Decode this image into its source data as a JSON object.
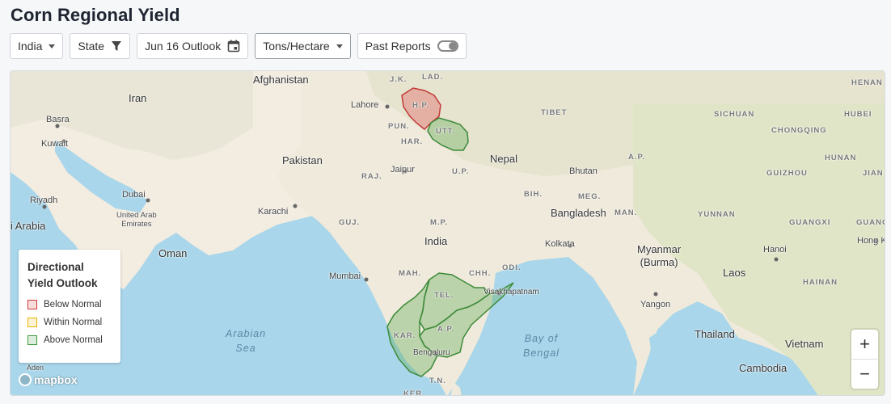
{
  "page": {
    "title": "Corn Regional Yield"
  },
  "toolbar": {
    "country": "India",
    "level": "State",
    "outlook": "Jun 16 Outlook",
    "unit": "Tons/Hectare",
    "past_reports": "Past Reports"
  },
  "legend": {
    "title_line1": "Directional",
    "title_line2": "Yield Outlook",
    "items": [
      {
        "label": "Below Normal",
        "color": "#d23b3b"
      },
      {
        "label": "Within Normal",
        "color": "#e8b400"
      },
      {
        "label": "Above Normal",
        "color": "#3d9a3a"
      }
    ]
  },
  "map": {
    "attribution": "mapbox",
    "zoom_in": "+",
    "zoom_out": "−",
    "region_outlook": [
      {
        "state": "H.P.",
        "outlook": "Below Normal"
      },
      {
        "state": "UTT.",
        "outlook": "Above Normal"
      },
      {
        "state": "TEL.",
        "outlook": "Above Normal"
      },
      {
        "state": "A.P.",
        "outlook": "Above Normal"
      },
      {
        "state": "KAR.",
        "outlook": "Above Normal"
      }
    ],
    "labels": {
      "afghanistan": "Afghanistan",
      "iran": "Iran",
      "basra": "Basra",
      "kuwait": "Kuwait",
      "lahore": "Lahore",
      "pakistan": "Pakistan",
      "riyadh": "Riyadh",
      "dubai": "Dubai",
      "uae": "United Arab\nEmirates",
      "saudi": "i Arabia",
      "karachi": "Karachi",
      "oman": "Oman",
      "mumbai": "Mumbai",
      "arabian": "Arabian\nSea",
      "aden": "Aden",
      "india": "India",
      "jaipur": "Jaipur",
      "nepal": "Nepal",
      "bhutan": "Bhutan",
      "tibet": "TIBET",
      "sichuan": "SICHUAN",
      "chongqing": "CHONGQING",
      "hubei": "HUBEI",
      "henan": "HENAN",
      "hunan": "HUNAN",
      "guizhou": "GUIZHOU",
      "jiangxi": "JIAN",
      "yunnan": "YUNNAN",
      "guangxi": "GUANGXI",
      "guangdong": "GUANC",
      "hongkong": "Hong Ke",
      "bangladesh": "Bangladesh",
      "kolkata": "Kolkata",
      "myanmar": "Myanmar\n(Burma)",
      "laos": "Laos",
      "hanoi": "Hanoi",
      "hainan": "HAINAN",
      "yangon": "Yangon",
      "thailand": "Thailand",
      "vietnam": "Vietnam",
      "cambodia": "Cambodia",
      "bayofbengal": "Bay of\nBengal",
      "visakhapatnam": "Visakhapatnam",
      "bengaluru": "Bengaluru",
      "jk": "J.K.",
      "lad": "LAD.",
      "hp": "H.P.",
      "pun": "PUN.",
      "utt": "UTT.",
      "har": "HAR.",
      "raj": "RAJ.",
      "up": "U.P.",
      "bih": "BIH.",
      "meg": "MEG.",
      "ap_ne": "A.P.",
      "man": "MAN.",
      "guj": "GUJ.",
      "mp": "M.P.",
      "chh": "CHH.",
      "odi": "ODI.",
      "mah": "MAH.",
      "tel": "TEL.",
      "kar": "KAR.",
      "ap": "A.P.",
      "tn": "T.N.",
      "ker": "KER."
    }
  }
}
